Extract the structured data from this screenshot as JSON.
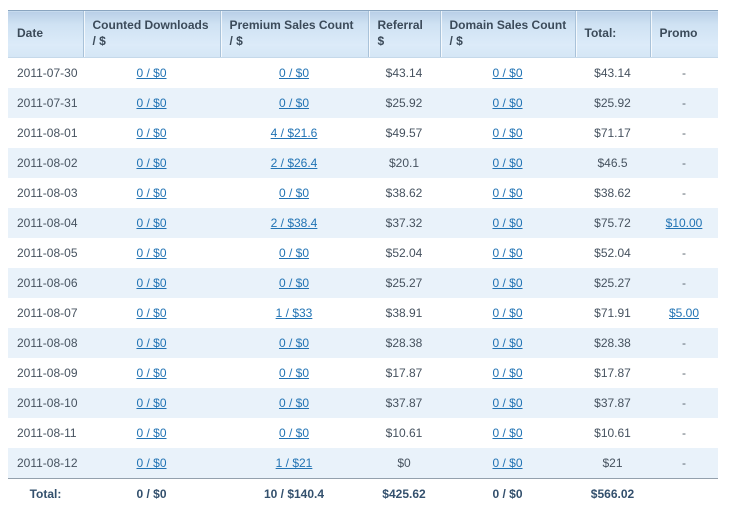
{
  "theme": {
    "link_color": "#2173b4",
    "header_text_color": "#3b4a59",
    "header_bg_top": "#b9cfe7",
    "header_bg_bottom": "#d4e6f5",
    "row_alt_bg": "#e9f2fa",
    "body_text_color": "#46525f",
    "total_text_color": "#33506d"
  },
  "table": {
    "columns": [
      {
        "id": "date",
        "label_line1": "Date",
        "linked": false
      },
      {
        "id": "counted_downloads",
        "label_line1": "Counted Downloads",
        "label_line2": "/ $",
        "linked": true
      },
      {
        "id": "premium_sales",
        "label_line1": "Premium Sales Count",
        "label_line2": "/ $",
        "linked": true
      },
      {
        "id": "referral",
        "label_line1": "Referral",
        "label_line2": "$",
        "linked": false
      },
      {
        "id": "domain_sales",
        "label_line1": "Domain Sales Count",
        "label_line2": "/ $",
        "linked": true
      },
      {
        "id": "total",
        "label_line1": "Total:",
        "linked": false
      },
      {
        "id": "promo",
        "label_line1": "Promo",
        "linked": true
      }
    ],
    "rows": [
      {
        "date": "2011-07-30",
        "counted_downloads": "0 / $0",
        "premium_sales": "0 / $0",
        "referral": "$43.14",
        "domain_sales": "0 / $0",
        "total": "$43.14",
        "promo": "-"
      },
      {
        "date": "2011-07-31",
        "counted_downloads": "0 / $0",
        "premium_sales": "0 / $0",
        "referral": "$25.92",
        "domain_sales": "0 / $0",
        "total": "$25.92",
        "promo": "-"
      },
      {
        "date": "2011-08-01",
        "counted_downloads": "0 / $0",
        "premium_sales": "4 / $21.6",
        "referral": "$49.57",
        "domain_sales": "0 / $0",
        "total": "$71.17",
        "promo": "-"
      },
      {
        "date": "2011-08-02",
        "counted_downloads": "0 / $0",
        "premium_sales": "2 / $26.4",
        "referral": "$20.1",
        "domain_sales": "0 / $0",
        "total": "$46.5",
        "promo": "-"
      },
      {
        "date": "2011-08-03",
        "counted_downloads": "0 / $0",
        "premium_sales": "0 / $0",
        "referral": "$38.62",
        "domain_sales": "0 / $0",
        "total": "$38.62",
        "promo": "-"
      },
      {
        "date": "2011-08-04",
        "counted_downloads": "0 / $0",
        "premium_sales": "2 / $38.4",
        "referral": "$37.32",
        "domain_sales": "0 / $0",
        "total": "$75.72",
        "promo": "$10.00"
      },
      {
        "date": "2011-08-05",
        "counted_downloads": "0 / $0",
        "premium_sales": "0 / $0",
        "referral": "$52.04",
        "domain_sales": "0 / $0",
        "total": "$52.04",
        "promo": "-"
      },
      {
        "date": "2011-08-06",
        "counted_downloads": "0 / $0",
        "premium_sales": "0 / $0",
        "referral": "$25.27",
        "domain_sales": "0 / $0",
        "total": "$25.27",
        "promo": "-"
      },
      {
        "date": "2011-08-07",
        "counted_downloads": "0 / $0",
        "premium_sales": "1 / $33",
        "referral": "$38.91",
        "domain_sales": "0 / $0",
        "total": "$71.91",
        "promo": "$5.00"
      },
      {
        "date": "2011-08-08",
        "counted_downloads": "0 / $0",
        "premium_sales": "0 / $0",
        "referral": "$28.38",
        "domain_sales": "0 / $0",
        "total": "$28.38",
        "promo": "-"
      },
      {
        "date": "2011-08-09",
        "counted_downloads": "0 / $0",
        "premium_sales": "0 / $0",
        "referral": "$17.87",
        "domain_sales": "0 / $0",
        "total": "$17.87",
        "promo": "-"
      },
      {
        "date": "2011-08-10",
        "counted_downloads": "0 / $0",
        "premium_sales": "0 / $0",
        "referral": "$37.87",
        "domain_sales": "0 / $0",
        "total": "$37.87",
        "promo": "-"
      },
      {
        "date": "2011-08-11",
        "counted_downloads": "0 / $0",
        "premium_sales": "0 / $0",
        "referral": "$10.61",
        "domain_sales": "0 / $0",
        "total": "$10.61",
        "promo": "-"
      },
      {
        "date": "2011-08-12",
        "counted_downloads": "0 / $0",
        "premium_sales": "1 / $21",
        "referral": "$0",
        "domain_sales": "0 / $0",
        "total": "$21",
        "promo": "-"
      }
    ],
    "totals": {
      "label": "Total:",
      "counted_downloads": "0 / $0",
      "premium_sales": "10 / $140.4",
      "referral": "$425.62",
      "domain_sales": "0 / $0",
      "total": "$566.02",
      "promo": ""
    }
  }
}
